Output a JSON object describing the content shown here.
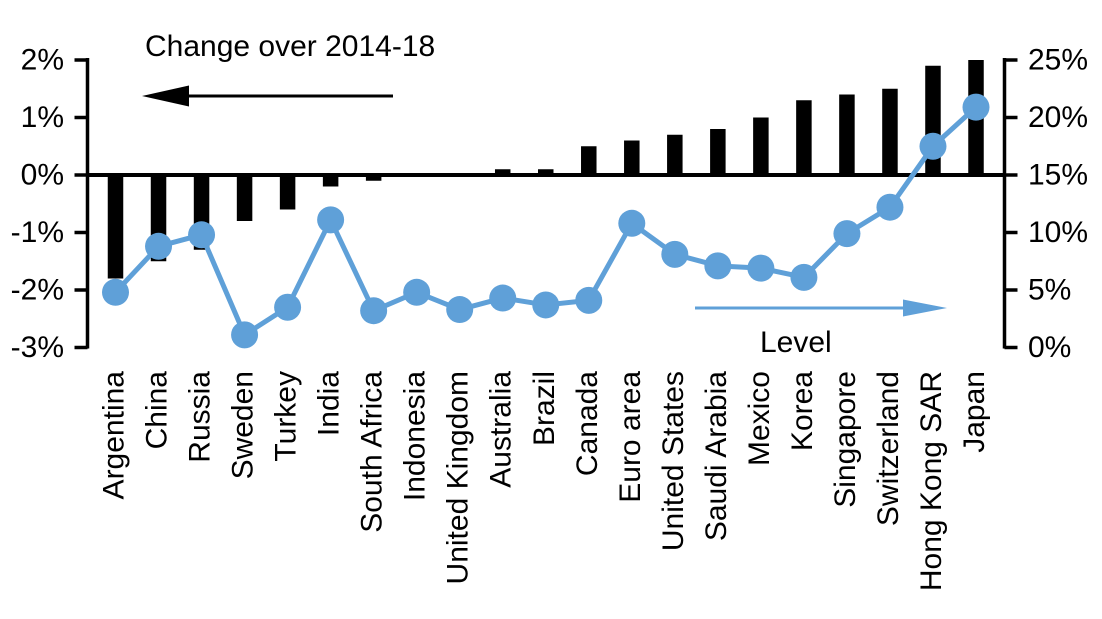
{
  "chart_data": {
    "type": "bar",
    "subtype": "combo-bar-and-line-dual-axis",
    "title": "",
    "categories": [
      "Argentina",
      "China",
      "Russia",
      "Sweden",
      "Turkey",
      "India",
      "South Africa",
      "Indonesia",
      "United Kingdom",
      "Australia",
      "Brazil",
      "Canada",
      "Euro area",
      "United States",
      "Saudi Arabia",
      "Mexico",
      "Korea",
      "Singapore",
      "Switzerland",
      "Hong Kong SAR",
      "Japan"
    ],
    "series": [
      {
        "name": "Change over 2014-18",
        "type": "bar",
        "axis": "left",
        "color": "#000000",
        "unit": "%",
        "values": [
          -1.8,
          -1.5,
          -1.3,
          -0.8,
          -0.6,
          -0.2,
          -0.1,
          0,
          0,
          0.1,
          0.1,
          0.5,
          0.6,
          0.7,
          0.8,
          1.0,
          1.3,
          1.4,
          1.5,
          1.9,
          2.0
        ]
      },
      {
        "name": "Level",
        "type": "line",
        "axis": "right",
        "color": "#5FA0D8",
        "unit": "%",
        "values": [
          4.8,
          8.8,
          9.8,
          1.1,
          3.5,
          11.1,
          3.2,
          4.8,
          3.3,
          4.3,
          3.7,
          4.1,
          10.8,
          8.1,
          7.1,
          6.9,
          6.1,
          9.9,
          12.2,
          17.5,
          20.9
        ]
      }
    ],
    "left_axis": {
      "tick_labels": [
        "2%",
        "1%",
        "0%",
        "-1%",
        "-2%",
        "-3%"
      ],
      "tick_values": [
        2,
        1,
        0,
        -1,
        -2,
        -3
      ],
      "range": [
        -3,
        2
      ]
    },
    "right_axis": {
      "tick_labels": [
        "25%",
        "20%",
        "15%",
        "10%",
        "5%",
        "0%"
      ],
      "tick_values": [
        25,
        20,
        15,
        10,
        5,
        0
      ],
      "range": [
        0,
        25
      ]
    },
    "annotations": {
      "bar_series_label": "Change over 2014-18",
      "bar_series_arrow": "points-left",
      "line_series_label": "Level",
      "line_series_arrow": "points-right"
    },
    "grid": false,
    "legend_position": "none"
  }
}
